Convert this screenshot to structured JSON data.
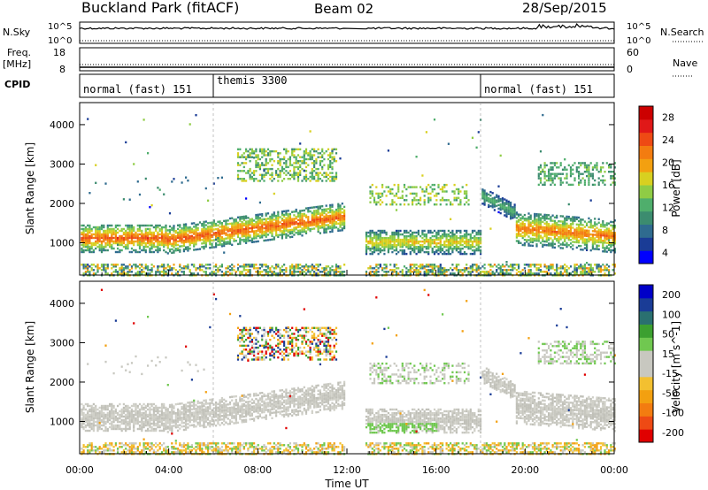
{
  "header": {
    "station": "Buckland Park (fitACF)",
    "beam": "Beam 02",
    "date": "28/Sep/2015"
  },
  "strip": {
    "nsky_label": "N.Sky",
    "nsky_top": "10^5",
    "nsky_bottom": "10^0",
    "nsearch_label": "N.Search",
    "nsearch_top": "10^5",
    "nsearch_bottom": "10^0",
    "freq_label_1": "Freq.",
    "freq_label_2": "[MHz]",
    "freq_top": "18",
    "freq_bottom": "8",
    "nave_label": "Nave",
    "nave_top": "60",
    "nave_bottom": "0",
    "cpid_label": "CPID",
    "cpid_modes": [
      {
        "label": "normal (fast) 151",
        "start_hour": 0.0,
        "end_hour": 6.0
      },
      {
        "label": "themis 3300",
        "start_hour": 6.0,
        "end_hour": 18.0
      },
      {
        "label": "normal (fast) 151",
        "start_hour": 18.0,
        "end_hour": 24.0
      }
    ]
  },
  "colorbars": {
    "power": {
      "label": "Power [dB]",
      "ticks": [
        "28",
        "24",
        "20",
        "16",
        "12",
        "8",
        "4"
      ],
      "colors": [
        "#0000ff",
        "#1a3c96",
        "#2f6b8f",
        "#3c8c6f",
        "#4fae6c",
        "#8fcc45",
        "#d8d020",
        "#f3a010",
        "#f37c10",
        "#ee4a14",
        "#e01818",
        "#cc0000"
      ]
    },
    "velocity": {
      "label": "Velocity [m s^-1]",
      "ticks": [
        "200",
        "100",
        "50",
        "15",
        "-15",
        "-50",
        "-100",
        "-200"
      ],
      "colors": [
        "#e00000",
        "#ee4a14",
        "#f37c10",
        "#f3a010",
        "#f3c030",
        "#c8c8c0",
        "#c8c8c0",
        "#70c850",
        "#3ca030",
        "#2a7070",
        "#1a3c96",
        "#0000c8"
      ]
    }
  },
  "chart_data": [
    {
      "type": "heatmap",
      "title": "Power",
      "ylabel": "Slant Range [km]",
      "xlabel": "Time UT",
      "x_ticks": [
        "00:00",
        "04:00",
        "08:00",
        "12:00",
        "16:00",
        "20:00",
        "00:00"
      ],
      "y_ticks": [
        "1000",
        "2000",
        "3000",
        "4000"
      ],
      "xlim_hours": [
        0,
        24
      ],
      "ylim_km": [
        180,
        4560
      ],
      "data_gap_hours": [
        11.9,
        12.8
      ],
      "echo_bands": [
        {
          "t0": 0.0,
          "t1": 3.9,
          "r_center": 1150,
          "r_width": 380,
          "power_db": 26
        },
        {
          "t0": 3.9,
          "t1": 11.9,
          "r_center": "1100-1700 rising",
          "r_width": 350,
          "power_db": 26
        },
        {
          "t0": 12.8,
          "t1": 18.0,
          "r_center": 1050,
          "r_width": 300,
          "power_db": 18
        },
        {
          "t0": 19.5,
          "t1": 24.0,
          "r_center": 1250,
          "r_width": 400,
          "power_db": 24
        },
        {
          "t0": 7.0,
          "t1": 11.0,
          "r_center": 3100,
          "r_width": 400,
          "power_db": 12
        }
      ]
    },
    {
      "type": "heatmap",
      "title": "Velocity",
      "ylabel": "Slant Range [km]",
      "xlabel": "Time UT",
      "x_ticks": [
        "00:00",
        "04:00",
        "08:00",
        "12:00",
        "16:00",
        "20:00",
        "00:00"
      ],
      "y_ticks": [
        "1000",
        "2000",
        "3000",
        "4000"
      ],
      "xlim_hours": [
        0,
        24
      ],
      "ylim_km": [
        180,
        4560
      ],
      "data_gap_hours": [
        11.9,
        12.8
      ]
    }
  ]
}
